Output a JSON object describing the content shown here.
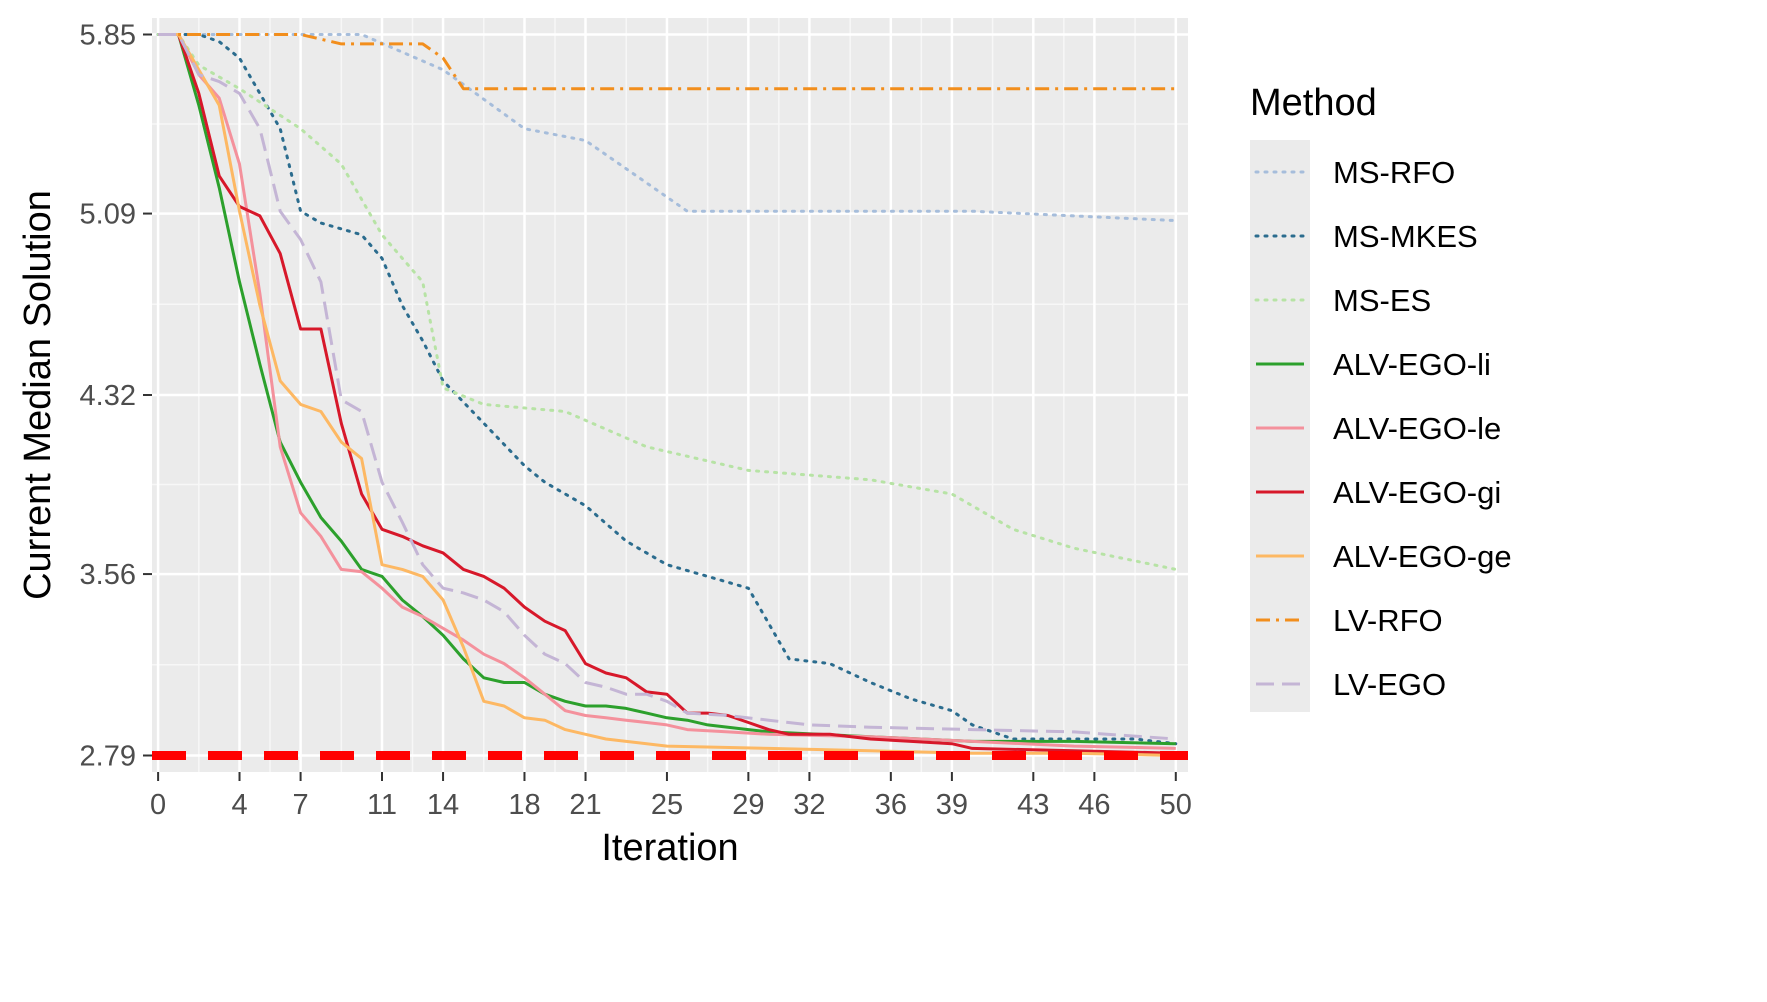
{
  "chart_data": {
    "type": "line",
    "title": "",
    "xlabel": "Iteration",
    "ylabel": "Current Median Solution",
    "xlim": [
      -0.3,
      50.6
    ],
    "ylim": [
      2.72,
      5.92
    ],
    "x_ticks": [
      0,
      4,
      7,
      11,
      14,
      18,
      21,
      25,
      29,
      32,
      36,
      39,
      43,
      46,
      50
    ],
    "y_ticks": [
      2.79,
      3.56,
      4.32,
      5.09,
      5.85
    ],
    "y_tick_labels": [
      "2.79",
      "3.56",
      "4.32",
      "5.09",
      "5.85"
    ],
    "grid": true,
    "legend_title": "Method",
    "legend_position": "right",
    "reference_line": {
      "y": 2.79,
      "color": "#ff0000",
      "style": "dashed"
    },
    "series": [
      {
        "name": "MS-RFO",
        "color": "#a6bddb",
        "dash": "dotted",
        "x": [
          0,
          1,
          2,
          5,
          10,
          14,
          18,
          21,
          26,
          31,
          40,
          50
        ],
        "y": [
          5.85,
          5.85,
          5.85,
          5.85,
          5.85,
          5.7,
          5.45,
          5.4,
          5.1,
          5.1,
          5.1,
          5.06
        ]
      },
      {
        "name": "MS-MKES",
        "color": "#2b6c8e",
        "dash": "dotted",
        "x": [
          0,
          1,
          2,
          3,
          4,
          6,
          7,
          8,
          10,
          11,
          12,
          13,
          14,
          16,
          18,
          19,
          21,
          23,
          25,
          27,
          29,
          31,
          33,
          35,
          37,
          39,
          40,
          42,
          44,
          46,
          48,
          50
        ],
        "y": [
          5.85,
          5.85,
          5.85,
          5.82,
          5.75,
          5.45,
          5.1,
          5.05,
          5.0,
          4.9,
          4.7,
          4.55,
          4.38,
          4.2,
          4.02,
          3.95,
          3.85,
          3.7,
          3.6,
          3.55,
          3.5,
          3.2,
          3.18,
          3.1,
          3.03,
          2.98,
          2.92,
          2.86,
          2.86,
          2.86,
          2.86,
          2.84
        ]
      },
      {
        "name": "MS-ES",
        "color": "#b7e3a5",
        "dash": "dotted",
        "x": [
          0,
          1,
          2,
          4,
          7,
          9,
          11,
          13,
          14,
          16,
          20,
          24,
          29,
          35,
          39,
          42,
          45,
          50
        ],
        "y": [
          5.85,
          5.85,
          5.72,
          5.62,
          5.45,
          5.3,
          5.0,
          4.8,
          4.35,
          4.28,
          4.25,
          4.1,
          4.0,
          3.96,
          3.9,
          3.75,
          3.67,
          3.58
        ]
      },
      {
        "name": "ALV-EGO-li",
        "color": "#2ca02c",
        "dash": "solid",
        "x": [
          0,
          1,
          2,
          3,
          4,
          5,
          6,
          7,
          8,
          9,
          10,
          11,
          12,
          13,
          14,
          15,
          16,
          17,
          18,
          19,
          20,
          21,
          22,
          23,
          24,
          25,
          26,
          27,
          28,
          29,
          30,
          35,
          40,
          45,
          50
        ],
        "y": [
          5.85,
          5.85,
          5.55,
          5.2,
          4.8,
          4.45,
          4.12,
          3.95,
          3.8,
          3.7,
          3.58,
          3.55,
          3.45,
          3.38,
          3.3,
          3.2,
          3.12,
          3.1,
          3.1,
          3.05,
          3.02,
          3.0,
          3.0,
          2.99,
          2.97,
          2.95,
          2.94,
          2.92,
          2.91,
          2.9,
          2.89,
          2.87,
          2.85,
          2.85,
          2.84
        ]
      },
      {
        "name": "ALV-EGO-le",
        "color": "#f4919c",
        "dash": "solid",
        "x": [
          0,
          1,
          2,
          3,
          4,
          5,
          6,
          7,
          8,
          9,
          10,
          11,
          12,
          13,
          14,
          15,
          16,
          17,
          18,
          19,
          20,
          21,
          22,
          23,
          24,
          25,
          26,
          28,
          30,
          35,
          40,
          45,
          50
        ],
        "y": [
          5.85,
          5.85,
          5.68,
          5.58,
          5.3,
          4.75,
          4.1,
          3.82,
          3.72,
          3.58,
          3.57,
          3.5,
          3.42,
          3.38,
          3.33,
          3.28,
          3.22,
          3.18,
          3.12,
          3.05,
          2.98,
          2.96,
          2.95,
          2.94,
          2.93,
          2.92,
          2.9,
          2.89,
          2.88,
          2.87,
          2.85,
          2.83,
          2.82
        ]
      },
      {
        "name": "ALV-EGO-gi",
        "color": "#d7182a",
        "dash": "solid",
        "x": [
          0,
          1,
          2,
          3,
          4,
          5,
          6,
          7,
          8,
          9,
          10,
          11,
          12,
          13,
          14,
          15,
          16,
          17,
          18,
          19,
          20,
          21,
          22,
          23,
          24,
          25,
          26,
          27,
          28,
          29,
          30,
          31,
          33,
          35,
          37,
          39,
          40,
          45,
          50
        ],
        "y": [
          5.85,
          5.85,
          5.6,
          5.25,
          5.12,
          5.08,
          4.92,
          4.6,
          4.6,
          4.2,
          3.9,
          3.75,
          3.72,
          3.68,
          3.65,
          3.58,
          3.55,
          3.5,
          3.42,
          3.36,
          3.32,
          3.18,
          3.14,
          3.12,
          3.06,
          3.05,
          2.97,
          2.97,
          2.96,
          2.93,
          2.9,
          2.88,
          2.88,
          2.86,
          2.85,
          2.84,
          2.82,
          2.81,
          2.8
        ]
      },
      {
        "name": "ALV-EGO-ge",
        "color": "#fdb863",
        "dash": "solid",
        "x": [
          0,
          1,
          2,
          3,
          4,
          5,
          6,
          7,
          8,
          9,
          10,
          11,
          12,
          13,
          14,
          15,
          16,
          17,
          18,
          19,
          20,
          21,
          22,
          23,
          25,
          30,
          35,
          40,
          45,
          50
        ],
        "y": [
          5.85,
          5.85,
          5.7,
          5.55,
          5.1,
          4.7,
          4.38,
          4.28,
          4.25,
          4.12,
          4.05,
          3.6,
          3.58,
          3.55,
          3.45,
          3.25,
          3.02,
          3.0,
          2.95,
          2.94,
          2.9,
          2.88,
          2.86,
          2.85,
          2.83,
          2.82,
          2.81,
          2.8,
          2.8,
          2.79
        ]
      },
      {
        "name": "LV-RFO",
        "color": "#f28e1c",
        "dash": "dashdot",
        "x": [
          0,
          6,
          7,
          8,
          9,
          13,
          14,
          15,
          20,
          30,
          40,
          50
        ],
        "y": [
          5.85,
          5.85,
          5.85,
          5.83,
          5.81,
          5.81,
          5.75,
          5.62,
          5.62,
          5.62,
          5.62,
          5.62
        ]
      },
      {
        "name": "LV-EGO",
        "color": "#c4b5d5",
        "dash": "longdash",
        "x": [
          0,
          1,
          2,
          3,
          4,
          5,
          6,
          7,
          8,
          9,
          10,
          11,
          12,
          13,
          14,
          15,
          16,
          17,
          18,
          19,
          20,
          21,
          22,
          23,
          24,
          25,
          26,
          28,
          30,
          32,
          35,
          40,
          45,
          50
        ],
        "y": [
          5.85,
          5.85,
          5.68,
          5.65,
          5.6,
          5.45,
          5.1,
          4.98,
          4.8,
          4.3,
          4.25,
          3.95,
          3.78,
          3.6,
          3.5,
          3.48,
          3.45,
          3.4,
          3.3,
          3.22,
          3.18,
          3.1,
          3.08,
          3.05,
          3.05,
          3.02,
          2.97,
          2.96,
          2.94,
          2.92,
          2.91,
          2.9,
          2.89,
          2.86
        ]
      }
    ]
  }
}
